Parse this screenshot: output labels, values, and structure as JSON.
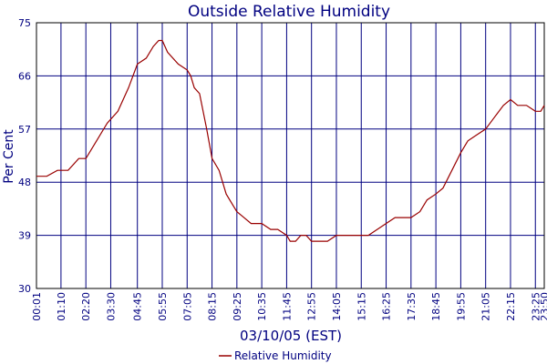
{
  "chart_data": {
    "type": "line",
    "title": "Outside Relative Humidity",
    "xlabel": "03/10/05 (EST)",
    "ylabel": "Per Cent",
    "ylim": [
      30,
      75
    ],
    "yticks": [
      "30",
      "39",
      "48",
      "57",
      "66",
      "75"
    ],
    "xticks": [
      "00:01",
      "01:10",
      "02:20",
      "03:30",
      "04:45",
      "05:55",
      "07:05",
      "08:15",
      "09:25",
      "10:35",
      "11:45",
      "12:55",
      "14:05",
      "15:15",
      "16:25",
      "17:35",
      "18:45",
      "19:55",
      "21:05",
      "22:15",
      "23:25",
      "23:50"
    ],
    "grid": true,
    "legend_position": "bottom-center",
    "colors": {
      "series": "#990000",
      "grid": "#000080",
      "text": "#000080"
    },
    "series": [
      {
        "name": "Relative Humidity",
        "x": [
          "00:01",
          "00:30",
          "01:00",
          "01:30",
          "02:00",
          "02:20",
          "02:50",
          "03:20",
          "03:50",
          "04:20",
          "04:45",
          "05:10",
          "05:30",
          "05:45",
          "05:55",
          "06:10",
          "06:40",
          "07:05",
          "07:15",
          "07:25",
          "07:40",
          "08:00",
          "08:15",
          "08:35",
          "08:55",
          "09:15",
          "09:25",
          "09:45",
          "10:05",
          "10:35",
          "11:00",
          "11:20",
          "11:45",
          "11:55",
          "12:10",
          "12:25",
          "12:40",
          "12:55",
          "13:20",
          "13:40",
          "14:05",
          "14:30",
          "14:50",
          "15:15",
          "15:35",
          "16:00",
          "16:25",
          "16:50",
          "17:15",
          "17:35",
          "18:00",
          "18:20",
          "18:45",
          "19:05",
          "19:30",
          "19:55",
          "20:15",
          "20:40",
          "21:05",
          "21:30",
          "21:55",
          "22:15",
          "22:35",
          "23:00",
          "23:25",
          "23:40",
          "23:50"
        ],
        "values": [
          49,
          49,
          50,
          50,
          52,
          52,
          55,
          58,
          60,
          64,
          68,
          69,
          71,
          72,
          72,
          70,
          68,
          67,
          66,
          64,
          63,
          57,
          52,
          50,
          46,
          44,
          43,
          42,
          41,
          41,
          40,
          40,
          39,
          38,
          38,
          39,
          39,
          38,
          38,
          38,
          39,
          39,
          39,
          39,
          39,
          40,
          41,
          42,
          42,
          42,
          43,
          45,
          46,
          47,
          50,
          53,
          55,
          56,
          57,
          59,
          61,
          62,
          61,
          61,
          60,
          60,
          61
        ]
      }
    ]
  }
}
